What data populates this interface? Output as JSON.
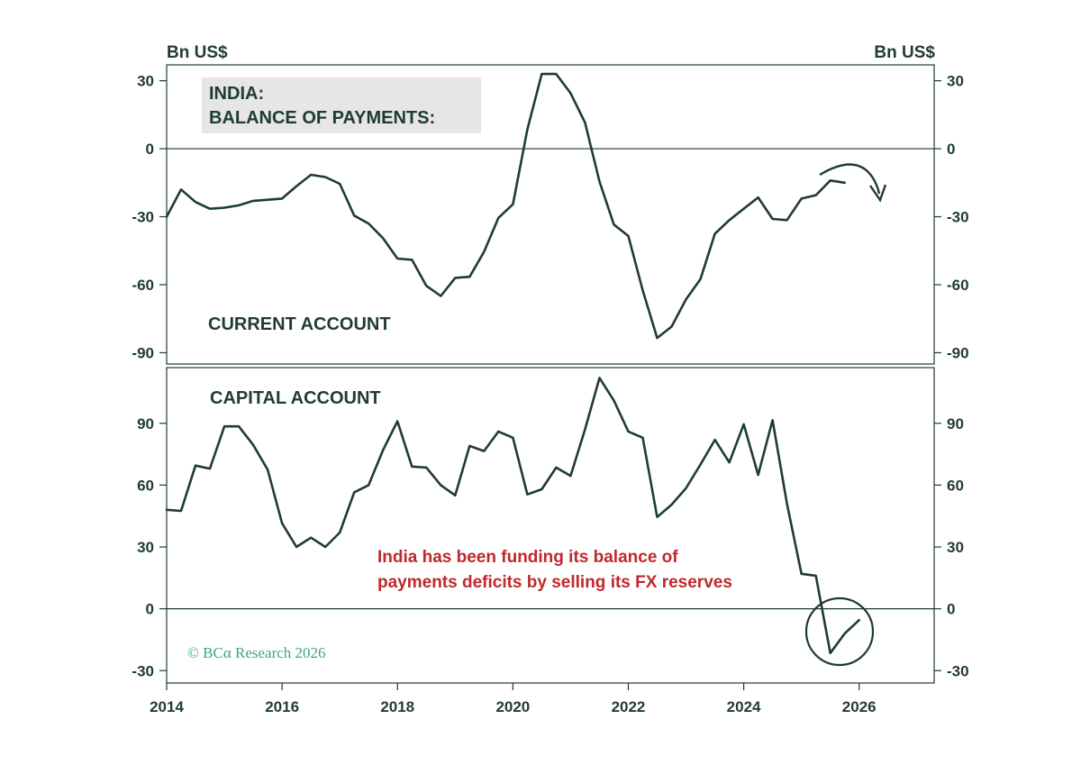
{
  "units": {
    "left": "Bn US$",
    "right": "Bn US$"
  },
  "title_lines": [
    "INDIA:",
    "BALANCE OF PAYMENTS:"
  ],
  "annotation_lines": [
    "India has been funding its balance of",
    "payments deficits by selling its FX reserves"
  ],
  "credit": "© BCα Research 2026",
  "colors": {
    "line": "#1f3b36",
    "annotation": "#c0282d",
    "credit": "#3aa876",
    "title_box": "#e6e6e6"
  },
  "x_ticks": [
    2014,
    2016,
    2018,
    2020,
    2022,
    2024,
    2026
  ],
  "chart_data": [
    {
      "type": "line",
      "label": "CURRENT ACCOUNT",
      "xlim": [
        2014,
        2027.3
      ],
      "ylim": [
        -95,
        37
      ],
      "yticks": [
        30,
        0,
        -30,
        -60,
        -90
      ],
      "ytick_labels": [
        "30",
        "0",
        "-30",
        "-60",
        "-90"
      ],
      "zero_line": true,
      "series": [
        {
          "x": [
            2014.0,
            2014.25,
            2014.5,
            2014.75,
            2015.0,
            2015.25,
            2015.5,
            2015.75,
            2016.0,
            2016.25,
            2016.5,
            2016.75,
            2017.0,
            2017.25,
            2017.5,
            2017.75,
            2018.0,
            2018.25,
            2018.5,
            2018.75,
            2019.0,
            2019.25,
            2019.5,
            2019.75,
            2020.0,
            2020.25,
            2020.5,
            2020.75,
            2021.0,
            2021.25,
            2021.5,
            2021.75,
            2022.0,
            2022.25,
            2022.5,
            2022.75,
            2023.0,
            2023.25,
            2023.5,
            2023.75,
            2024.0,
            2024.25,
            2024.5,
            2024.75,
            2025.0,
            2025.25,
            2025.5,
            2025.75
          ],
          "y": [
            -30,
            -18,
            -23.5,
            -26.5,
            -26,
            -25,
            -23,
            -22.5,
            -22,
            -16.5,
            -11.5,
            -12.5,
            -15.5,
            -29.5,
            -33,
            -39.5,
            -48.5,
            -49,
            -60.5,
            -65,
            -57,
            -56.5,
            -45.5,
            -30.5,
            -24.5,
            8.5,
            33,
            33,
            24.5,
            11.5,
            -14.5,
            -33.5,
            -38.5,
            -62.5,
            -83.5,
            -78.5,
            -66.5,
            -57.5,
            -37.5,
            -31.5,
            -26.5,
            -21.5,
            -31,
            -31.5,
            -22,
            -20.5,
            -14,
            -15
          ]
        }
      ],
      "arrow": "curved arrow pointing down"
    },
    {
      "type": "line",
      "label": "CAPITAL ACCOUNT",
      "xlim": [
        2014,
        2027.3
      ],
      "ylim": [
        -36,
        117
      ],
      "yticks": [
        90,
        60,
        30,
        0,
        -30
      ],
      "ytick_labels": [
        "90",
        "60",
        "30",
        "0",
        "-30"
      ],
      "zero_line": true,
      "series": [
        {
          "x": [
            2014.0,
            2014.25,
            2014.5,
            2014.75,
            2015.0,
            2015.25,
            2015.5,
            2015.75,
            2016.0,
            2016.25,
            2016.5,
            2016.75,
            2017.0,
            2017.25,
            2017.5,
            2017.75,
            2018.0,
            2018.25,
            2018.5,
            2018.75,
            2019.0,
            2019.25,
            2019.5,
            2019.75,
            2020.0,
            2020.25,
            2020.5,
            2020.75,
            2021.0,
            2021.25,
            2021.5,
            2021.75,
            2022.0,
            2022.25,
            2022.5,
            2022.75,
            2023.0,
            2023.25,
            2023.5,
            2023.75,
            2024.0,
            2024.25,
            2024.5,
            2024.75,
            2025.0,
            2025.25,
            2025.5,
            2025.75,
            2026.0
          ],
          "y": [
            48,
            47.5,
            69.5,
            68,
            88.5,
            88.5,
            79.5,
            67.5,
            41.5,
            30,
            34.5,
            30,
            37,
            56.5,
            60,
            77,
            91,
            69,
            68.5,
            60,
            55,
            79,
            76.5,
            86,
            83,
            55.5,
            58,
            68.5,
            64.5,
            87,
            112,
            101,
            86,
            83,
            44.5,
            50.5,
            58.5,
            70,
            82,
            71,
            89.5,
            65,
            91.5,
            51,
            17,
            16,
            -21.5,
            -12,
            -5.5
          ]
        }
      ],
      "highlight": "circle around the latest data points"
    }
  ]
}
